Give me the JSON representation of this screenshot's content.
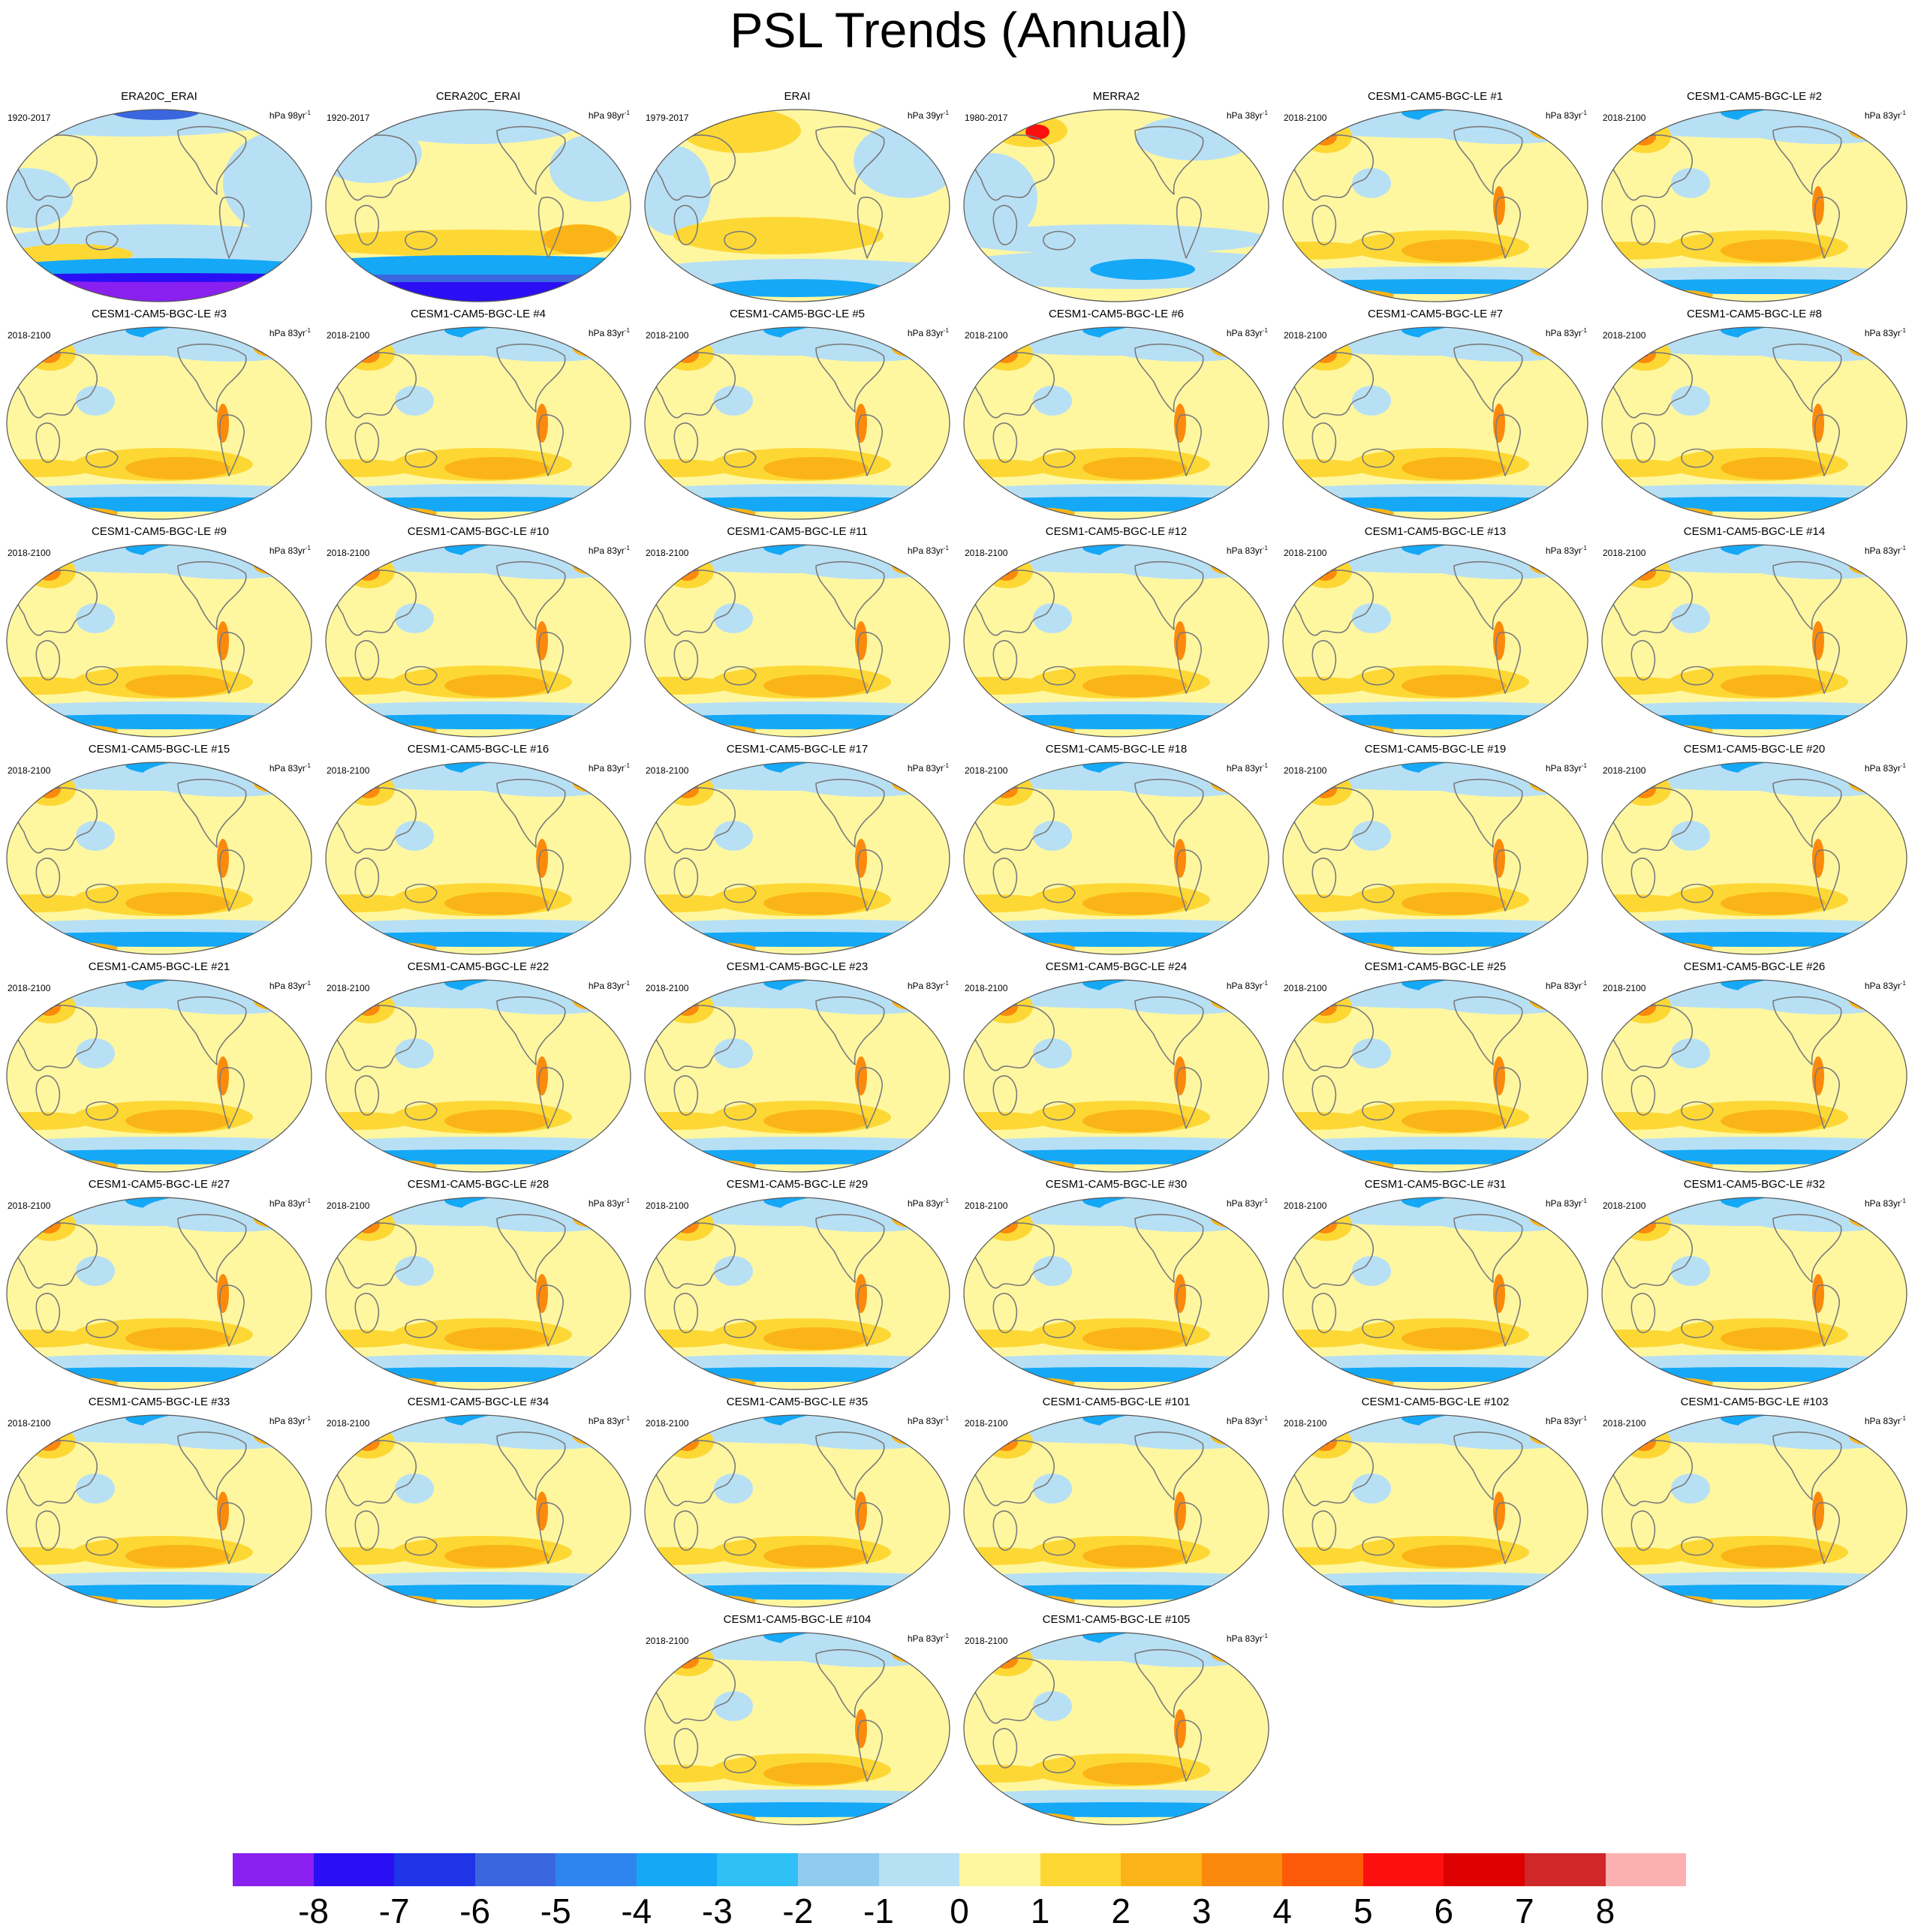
{
  "title": "PSL Trends (Annual)",
  "panels": [
    {
      "title": "ERA20C_ERAI",
      "period": "1920-2017",
      "units": "hPa 98yr",
      "units_exp": "-1",
      "scheme": "era20c"
    },
    {
      "title": "CERA20C_ERAI",
      "period": "1920-2017",
      "units": "hPa 98yr",
      "units_exp": "-1",
      "scheme": "cera20c"
    },
    {
      "title": "ERAI",
      "period": "1979-2017",
      "units": "hPa 39yr",
      "units_exp": "-1",
      "scheme": "erai"
    },
    {
      "title": "MERRA2",
      "period": "1980-2017",
      "units": "hPa 38yr",
      "units_exp": "-1",
      "scheme": "merra2"
    },
    {
      "title": "CESM1-CAM5-BGC-LE #1",
      "period": "2018-2100",
      "units": "hPa 83yr",
      "units_exp": "-1",
      "scheme": "model"
    },
    {
      "title": "CESM1-CAM5-BGC-LE #2",
      "period": "2018-2100",
      "units": "hPa 83yr",
      "units_exp": "-1",
      "scheme": "model"
    },
    {
      "title": "CESM1-CAM5-BGC-LE #3",
      "period": "2018-2100",
      "units": "hPa 83yr",
      "units_exp": "-1",
      "scheme": "model"
    },
    {
      "title": "CESM1-CAM5-BGC-LE #4",
      "period": "2018-2100",
      "units": "hPa 83yr",
      "units_exp": "-1",
      "scheme": "model"
    },
    {
      "title": "CESM1-CAM5-BGC-LE #5",
      "period": "2018-2100",
      "units": "hPa 83yr",
      "units_exp": "-1",
      "scheme": "model"
    },
    {
      "title": "CESM1-CAM5-BGC-LE #6",
      "period": "2018-2100",
      "units": "hPa 83yr",
      "units_exp": "-1",
      "scheme": "model"
    },
    {
      "title": "CESM1-CAM5-BGC-LE #7",
      "period": "2018-2100",
      "units": "hPa 83yr",
      "units_exp": "-1",
      "scheme": "model"
    },
    {
      "title": "CESM1-CAM5-BGC-LE #8",
      "period": "2018-2100",
      "units": "hPa 83yr",
      "units_exp": "-1",
      "scheme": "model"
    },
    {
      "title": "CESM1-CAM5-BGC-LE #9",
      "period": "2018-2100",
      "units": "hPa 83yr",
      "units_exp": "-1",
      "scheme": "model"
    },
    {
      "title": "CESM1-CAM5-BGC-LE #10",
      "period": "2018-2100",
      "units": "hPa 83yr",
      "units_exp": "-1",
      "scheme": "model"
    },
    {
      "title": "CESM1-CAM5-BGC-LE #11",
      "period": "2018-2100",
      "units": "hPa 83yr",
      "units_exp": "-1",
      "scheme": "model"
    },
    {
      "title": "CESM1-CAM5-BGC-LE #12",
      "period": "2018-2100",
      "units": "hPa 83yr",
      "units_exp": "-1",
      "scheme": "model"
    },
    {
      "title": "CESM1-CAM5-BGC-LE #13",
      "period": "2018-2100",
      "units": "hPa 83yr",
      "units_exp": "-1",
      "scheme": "model"
    },
    {
      "title": "CESM1-CAM5-BGC-LE #14",
      "period": "2018-2100",
      "units": "hPa 83yr",
      "units_exp": "-1",
      "scheme": "model"
    },
    {
      "title": "CESM1-CAM5-BGC-LE #15",
      "period": "2018-2100",
      "units": "hPa 83yr",
      "units_exp": "-1",
      "scheme": "model"
    },
    {
      "title": "CESM1-CAM5-BGC-LE #16",
      "period": "2018-2100",
      "units": "hPa 83yr",
      "units_exp": "-1",
      "scheme": "model"
    },
    {
      "title": "CESM1-CAM5-BGC-LE #17",
      "period": "2018-2100",
      "units": "hPa 83yr",
      "units_exp": "-1",
      "scheme": "model"
    },
    {
      "title": "CESM1-CAM5-BGC-LE #18",
      "period": "2018-2100",
      "units": "hPa 83yr",
      "units_exp": "-1",
      "scheme": "model"
    },
    {
      "title": "CESM1-CAM5-BGC-LE #19",
      "period": "2018-2100",
      "units": "hPa 83yr",
      "units_exp": "-1",
      "scheme": "model"
    },
    {
      "title": "CESM1-CAM5-BGC-LE #20",
      "period": "2018-2100",
      "units": "hPa 83yr",
      "units_exp": "-1",
      "scheme": "model"
    },
    {
      "title": "CESM1-CAM5-BGC-LE #21",
      "period": "2018-2100",
      "units": "hPa 83yr",
      "units_exp": "-1",
      "scheme": "model"
    },
    {
      "title": "CESM1-CAM5-BGC-LE #22",
      "period": "2018-2100",
      "units": "hPa 83yr",
      "units_exp": "-1",
      "scheme": "model"
    },
    {
      "title": "CESM1-CAM5-BGC-LE #23",
      "period": "2018-2100",
      "units": "hPa 83yr",
      "units_exp": "-1",
      "scheme": "model"
    },
    {
      "title": "CESM1-CAM5-BGC-LE #24",
      "period": "2018-2100",
      "units": "hPa 83yr",
      "units_exp": "-1",
      "scheme": "model"
    },
    {
      "title": "CESM1-CAM5-BGC-LE #25",
      "period": "2018-2100",
      "units": "hPa 83yr",
      "units_exp": "-1",
      "scheme": "model"
    },
    {
      "title": "CESM1-CAM5-BGC-LE #26",
      "period": "2018-2100",
      "units": "hPa 83yr",
      "units_exp": "-1",
      "scheme": "model"
    },
    {
      "title": "CESM1-CAM5-BGC-LE #27",
      "period": "2018-2100",
      "units": "hPa 83yr",
      "units_exp": "-1",
      "scheme": "model"
    },
    {
      "title": "CESM1-CAM5-BGC-LE #28",
      "period": "2018-2100",
      "units": "hPa 83yr",
      "units_exp": "-1",
      "scheme": "model"
    },
    {
      "title": "CESM1-CAM5-BGC-LE #29",
      "period": "2018-2100",
      "units": "hPa 83yr",
      "units_exp": "-1",
      "scheme": "model"
    },
    {
      "title": "CESM1-CAM5-BGC-LE #30",
      "period": "2018-2100",
      "units": "hPa 83yr",
      "units_exp": "-1",
      "scheme": "model"
    },
    {
      "title": "CESM1-CAM5-BGC-LE #31",
      "period": "2018-2100",
      "units": "hPa 83yr",
      "units_exp": "-1",
      "scheme": "model"
    },
    {
      "title": "CESM1-CAM5-BGC-LE #32",
      "period": "2018-2100",
      "units": "hPa 83yr",
      "units_exp": "-1",
      "scheme": "model"
    },
    {
      "title": "CESM1-CAM5-BGC-LE #33",
      "period": "2018-2100",
      "units": "hPa 83yr",
      "units_exp": "-1",
      "scheme": "model"
    },
    {
      "title": "CESM1-CAM5-BGC-LE #34",
      "period": "2018-2100",
      "units": "hPa 83yr",
      "units_exp": "-1",
      "scheme": "model"
    },
    {
      "title": "CESM1-CAM5-BGC-LE #35",
      "period": "2018-2100",
      "units": "hPa 83yr",
      "units_exp": "-1",
      "scheme": "model"
    },
    {
      "title": "CESM1-CAM5-BGC-LE #101",
      "period": "2018-2100",
      "units": "hPa 83yr",
      "units_exp": "-1",
      "scheme": "model"
    },
    {
      "title": "CESM1-CAM5-BGC-LE #102",
      "period": "2018-2100",
      "units": "hPa 83yr",
      "units_exp": "-1",
      "scheme": "model"
    },
    {
      "title": "CESM1-CAM5-BGC-LE #103",
      "period": "2018-2100",
      "units": "hPa 83yr",
      "units_exp": "-1",
      "scheme": "model"
    },
    {
      "title": "CESM1-CAM5-BGC-LE #104",
      "period": "2018-2100",
      "units": "hPa 83yr",
      "units_exp": "-1",
      "scheme": "model"
    },
    {
      "title": "CESM1-CAM5-BGC-LE #105",
      "period": "2018-2100",
      "units": "hPa 83yr",
      "units_exp": "-1",
      "scheme": "model"
    }
  ],
  "colorbar": {
    "labels": [
      "-8",
      "-7",
      "-6",
      "-5",
      "-4",
      "-3",
      "-2",
      "-1",
      "0",
      "1",
      "2",
      "3",
      "4",
      "5",
      "6",
      "7",
      "8"
    ],
    "colors": [
      "#8a20f0",
      "#2a0ff5",
      "#1e34e6",
      "#3a66df",
      "#2f85f0",
      "#14a8f7",
      "#2fc0f5",
      "#8fcbee",
      "#b8e0f5",
      "#fff7a0",
      "#fdd835",
      "#fbb417",
      "#fb8a0c",
      "#fc5a08",
      "#fc0f0f",
      "#dc0000",
      "#d02828",
      "#fcb1b1"
    ]
  },
  "palette": {
    "deep_purple": "#8a20f0",
    "deep_blue": "#2a0ff5",
    "blue": "#3a66df",
    "mid_blue": "#14a8f7",
    "light_blue": "#b8e0f5",
    "pale_yellow": "#fff7a0",
    "yellow": "#fdd835",
    "orange": "#fbb417",
    "dark_orange": "#fb8a0c",
    "red": "#fc0f0f",
    "coast": "#7a7a7a"
  }
}
